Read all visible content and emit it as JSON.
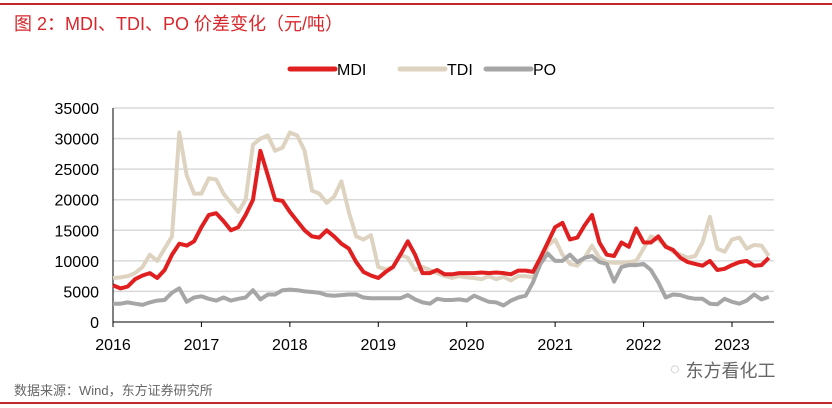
{
  "title": "图 2：MDI、TDI、PO 价差变化（元/吨）",
  "source": "数据来源：Wind，东方证券研究所",
  "watermark": "东方看化工",
  "chart_data": {
    "type": "line",
    "title": "图 2：MDI、TDI、PO 价差变化（元/吨）",
    "xlabel": "",
    "ylabel": "",
    "x_start": "2016-01",
    "x_frequency": "monthly",
    "xticks": [
      "2016",
      "2017",
      "2018",
      "2019",
      "2020",
      "2021",
      "2022",
      "2023"
    ],
    "yticks": [
      "0",
      "5000",
      "10000",
      "15000",
      "20000",
      "25000",
      "30000",
      "35000"
    ],
    "ylim": [
      0,
      35000
    ],
    "grid": "horizontal",
    "legend": "top",
    "series": [
      {
        "name": "MDI",
        "color": "#e02020",
        "values": [
          6000,
          5500,
          5800,
          7000,
          7600,
          8000,
          7200,
          8500,
          11000,
          12800,
          12500,
          13200,
          15500,
          17500,
          17800,
          16500,
          15000,
          15500,
          17500,
          20000,
          28000,
          24000,
          20000,
          19800,
          18000,
          16500,
          15000,
          14000,
          13800,
          15000,
          14000,
          12800,
          12000,
          9800,
          8200,
          7600,
          7200,
          8200,
          9000,
          11000,
          13200,
          11000,
          8000,
          8000,
          8500,
          7800,
          7800,
          8000,
          8000,
          8000,
          8100,
          8000,
          8100,
          8000,
          7800,
          8400,
          8400,
          8200,
          10500,
          13000,
          15500,
          16200,
          13500,
          13800,
          15800,
          17500,
          13000,
          11000,
          10800,
          13000,
          12300,
          15300,
          13000,
          13000,
          14000,
          12300,
          11800,
          10500,
          9800,
          9500,
          9200,
          10000,
          8500,
          8700,
          9300,
          9800,
          10000,
          9200,
          9300,
          10500
        ]
      },
      {
        "name": "TDI",
        "color": "#ddd3c0",
        "values": [
          7200,
          7300,
          7500,
          8000,
          9000,
          11000,
          10000,
          12000,
          14000,
          31000,
          24000,
          21000,
          21000,
          23500,
          23300,
          21000,
          19500,
          18000,
          20000,
          29000,
          30000,
          30500,
          28000,
          28500,
          31000,
          30500,
          28000,
          21500,
          21000,
          19500,
          20500,
          23000,
          18000,
          14000,
          13500,
          14200,
          9000,
          8600,
          9000,
          11000,
          10500,
          8500,
          9000,
          8500,
          8000,
          7500,
          7200,
          7500,
          7300,
          7200,
          7000,
          7500,
          7000,
          7400,
          6800,
          7500,
          7500,
          7300,
          9500,
          12500,
          13500,
          11000,
          9500,
          9200,
          10500,
          12500,
          10500,
          9800,
          9700,
          9700,
          9800,
          10000,
          12000,
          14000,
          13500,
          12500,
          11500,
          11000,
          10500,
          10800,
          13000,
          17200,
          12000,
          11500,
          13500,
          13800,
          12000,
          12600,
          12500,
          10800
        ]
      },
      {
        "name": "PO",
        "color": "#a6a6a6",
        "values": [
          3000,
          3000,
          3200,
          3000,
          2800,
          3200,
          3500,
          3600,
          4800,
          5500,
          3300,
          4000,
          4200,
          3800,
          3500,
          4000,
          3500,
          3800,
          4000,
          5200,
          3700,
          4500,
          4500,
          5200,
          5300,
          5200,
          5000,
          4900,
          4800,
          4400,
          4300,
          4400,
          4500,
          4500,
          4000,
          3900,
          3900,
          3900,
          3900,
          3900,
          4400,
          3700,
          3200,
          3000,
          3800,
          3600,
          3600,
          3700,
          3500,
          4300,
          3800,
          3300,
          3200,
          2700,
          3500,
          4000,
          4300,
          6500,
          9500,
          11200,
          10000,
          10000,
          11000,
          9800,
          10500,
          10800,
          9800,
          9500,
          6600,
          9000,
          9300,
          9300,
          9500,
          8500,
          6500,
          4000,
          4500,
          4400,
          4000,
          3800,
          3800,
          3000,
          2900,
          3800,
          3300,
          3000,
          3500,
          4500,
          3700,
          4100
        ]
      }
    ]
  }
}
